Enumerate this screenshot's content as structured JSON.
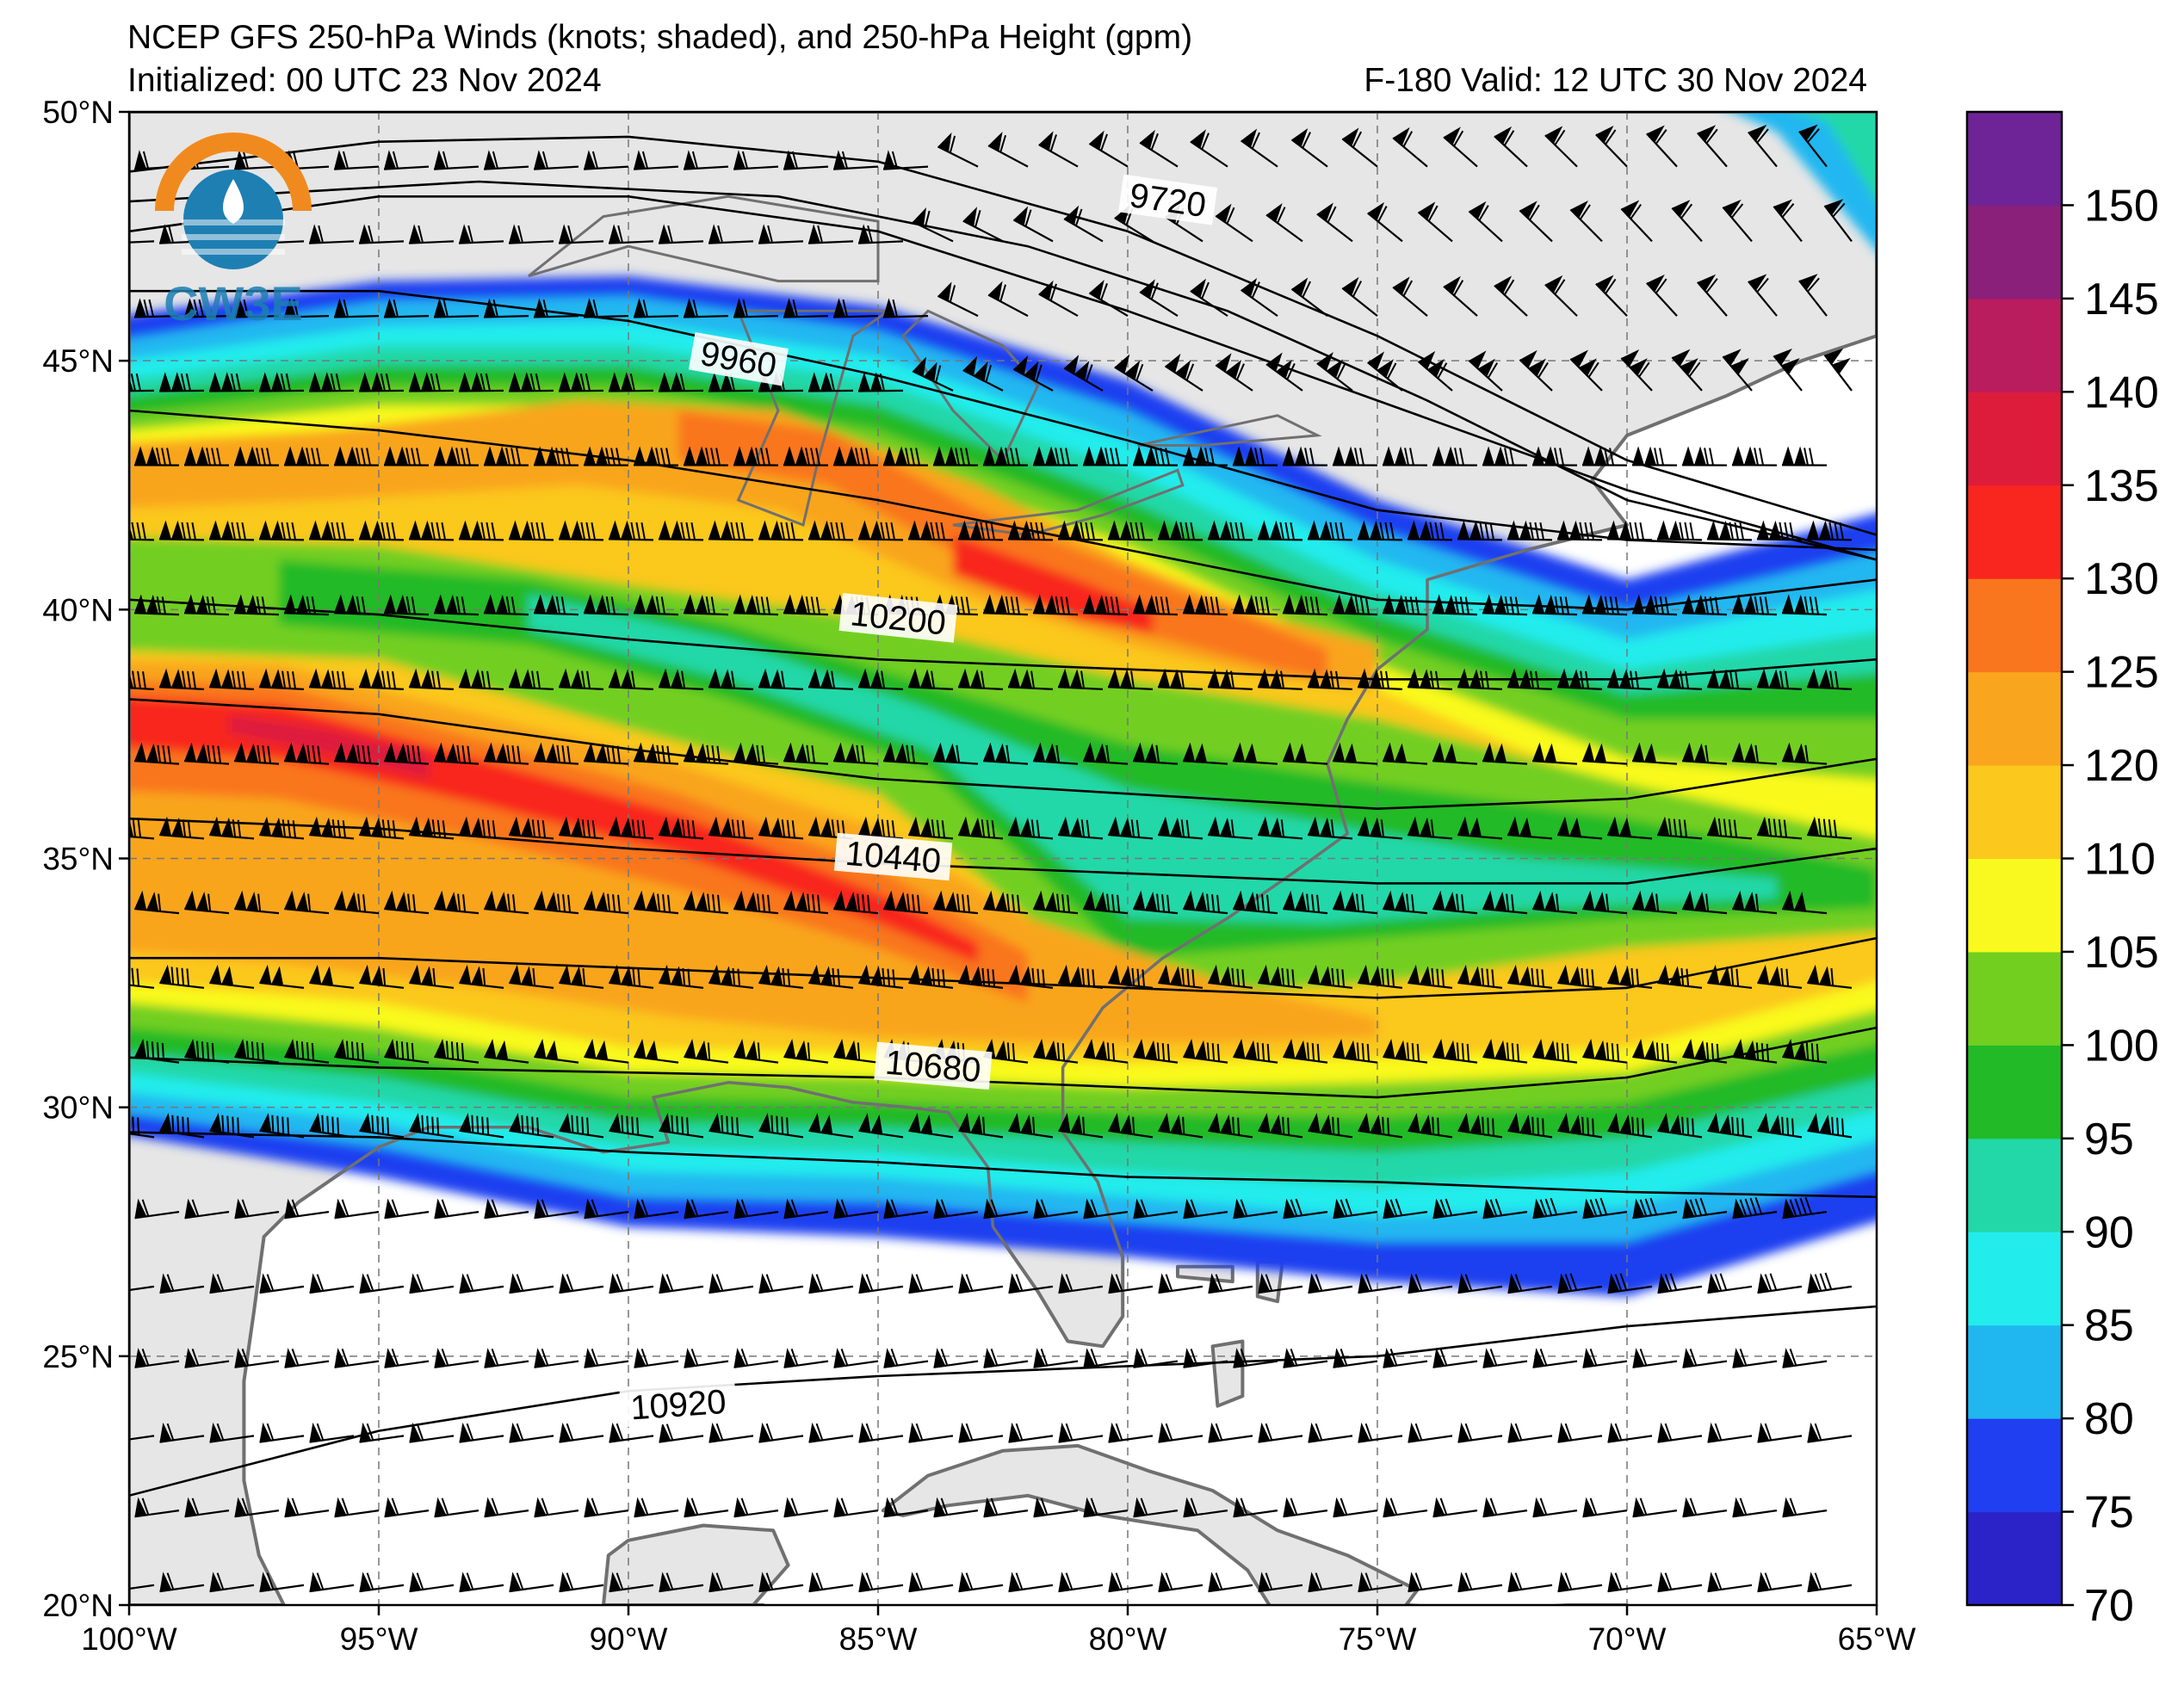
{
  "header": {
    "title": "NCEP GFS 250-hPa Winds (knots; shaded), and 250-hPa Height (gpm)",
    "initialized": "Initialized: 00 UTC 23 Nov 2024",
    "valid": "F-180  Valid: 12 UTC 30 Nov 2024"
  },
  "logo": {
    "text": "CW3E",
    "icon": "cw3e-logo-icon"
  },
  "map": {
    "lon_range": [
      -100,
      -65
    ],
    "lat_range": [
      20,
      50
    ],
    "lon_ticks": [
      "100°W",
      "95°W",
      "90°W",
      "85°W",
      "80°W",
      "75°W",
      "70°W",
      "65°W"
    ],
    "lat_ticks": [
      "50°N",
      "45°N",
      "40°N",
      "35°N",
      "30°N",
      "25°N",
      "20°N"
    ],
    "grid": "dashed",
    "land_color": "#e6e6e6",
    "coast_color": "#707070"
  },
  "height_contours": [
    {
      "label": "9720",
      "value": 9720
    },
    {
      "label": "9960",
      "value": 9960
    },
    {
      "label": "10200",
      "value": 10200
    },
    {
      "label": "10440",
      "value": 10440
    },
    {
      "label": "10680",
      "value": 10680
    },
    {
      "label": "10920",
      "value": 10920
    }
  ],
  "colorbar": {
    "levels": [
      70,
      75,
      80,
      85,
      90,
      95,
      100,
      105,
      110,
      120,
      125,
      130,
      135,
      140,
      145,
      150,
      155
    ],
    "tick_labels": [
      "70",
      "75",
      "80",
      "85",
      "90",
      "95",
      "100",
      "105",
      "110",
      "120",
      "125",
      "130",
      "135",
      "140",
      "145",
      "150"
    ],
    "colors": [
      "#2b22c8",
      "#1f3ff0",
      "#20b7f0",
      "#22ecec",
      "#22d8a8",
      "#23ba27",
      "#72cf20",
      "#f9f91f",
      "#fbc81e",
      "#f9a51e",
      "#f9761e",
      "#f8261e",
      "#dd1c3c",
      "#b91d5e",
      "#8a207a",
      "#6e2496"
    ]
  }
}
